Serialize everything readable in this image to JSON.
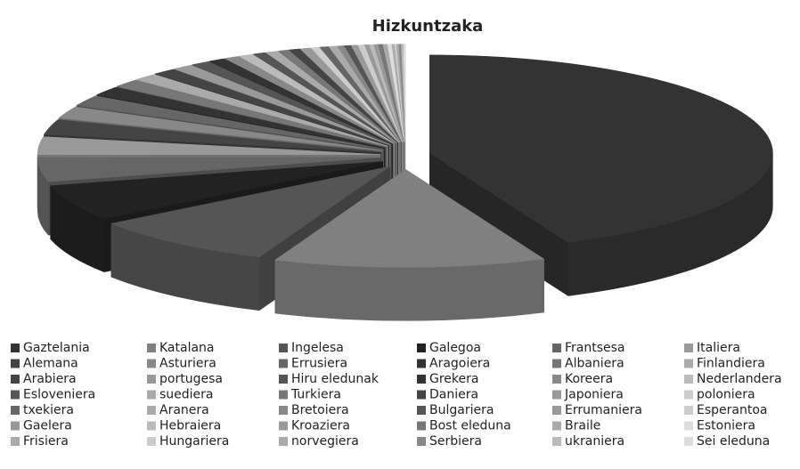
{
  "chart_data": {
    "type": "pie",
    "title": "Hizkuntzaka",
    "categories": [
      "Gaztelania",
      "Katalana",
      "Ingelesa",
      "Galegoa",
      "Frantsesa",
      "Italiera",
      "Alemana",
      "Asturiera",
      "Errusiera",
      "Aragoiera",
      "Albaniera",
      "Finlandiera",
      "Arabiera",
      "portugesa",
      "Hiru eledunak",
      "Grekera",
      "Koreera",
      "Nederlandera",
      "Esloveniera",
      "suediera",
      "Turkiera",
      "Daniera",
      "Japoniera",
      "poloniera",
      "txekiera",
      "Aranera",
      "Bretoiera",
      "Bulgariera",
      "Errumaniera",
      "Esperantoa",
      "Gaelera",
      "Hebraiera",
      "Kroaziera",
      "Bost eleduna",
      "Braile",
      "Estoniera",
      "Frisiera",
      "Hungariera",
      "norvegiera",
      "Serbiera",
      "ukraniera",
      "Sei eleduna"
    ],
    "values": [
      44,
      13,
      9,
      6,
      4,
      3,
      2.5,
      2,
      1.8,
      1.5,
      1.3,
      1.2,
      1.1,
      1,
      0.9,
      0.8,
      0.7,
      0.7,
      0.6,
      0.6,
      0.5,
      0.5,
      0.5,
      0.4,
      0.4,
      0.4,
      0.3,
      0.3,
      0.3,
      0.3,
      0.2,
      0.2,
      0.2,
      0.2,
      0.2,
      0.2,
      0.1,
      0.1,
      0.1,
      0.1,
      0.1,
      0.1
    ],
    "colors": [
      "#333333",
      "#808080",
      "#555555",
      "#222222",
      "#666666",
      "#999999",
      "#444444",
      "#888888",
      "#666666",
      "#333333",
      "#777777",
      "#aaaaaa",
      "#444444",
      "#999999",
      "#555555",
      "#333333",
      "#888888",
      "#bbbbbb",
      "#555555",
      "#aaaaaa",
      "#777777",
      "#444444",
      "#999999",
      "#cccccc",
      "#666666",
      "#aaaaaa",
      "#888888",
      "#555555",
      "#999999",
      "#cccccc",
      "#999999",
      "#bbbbbb",
      "#999999",
      "#777777",
      "#aaaaaa",
      "#dddddd",
      "#aaaaaa",
      "#cccccc",
      "#aaaaaa",
      "#888888",
      "#bbbbbb",
      "#dddddd"
    ],
    "legend": "bottom"
  }
}
